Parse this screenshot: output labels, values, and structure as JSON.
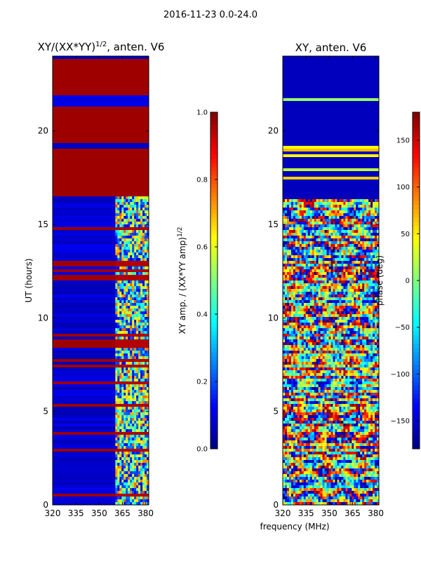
{
  "suptitle": "2016-11-23 0.0-24.0",
  "chart_data": [
    {
      "type": "heatmap",
      "title_main": "XY/(XX*YY)",
      "title_exp": "1/2",
      "title_tail": ", anten. V6",
      "xlabel": "",
      "ylabel": "UT (hours)",
      "xlim": [
        320,
        382
      ],
      "ylim": [
        0,
        24
      ],
      "xticks": [
        "320",
        "335",
        "350",
        "365",
        "380"
      ],
      "xtick_values": [
        320,
        335,
        350,
        365,
        380
      ],
      "yticks": [
        "0",
        "5",
        "10",
        "15",
        "20"
      ],
      "ytick_values": [
        0,
        5,
        10,
        15,
        20
      ],
      "colorbar": {
        "label": "XY amp. / (XX*YY amp)",
        "label_exp": "1/2",
        "range": [
          0.0,
          1.0
        ],
        "ticks": [
          "0.0",
          "0.2",
          "0.4",
          "0.6",
          "0.8",
          "1.0"
        ],
        "tick_values": [
          0.0,
          0.2,
          0.4,
          0.6,
          0.8,
          1.0
        ]
      },
      "colormap": "jet",
      "description_bands": {
        "high_value_hours": [
          [
            16.5,
            19.0
          ],
          [
            19.3,
            21.3
          ],
          [
            21.9,
            23.9
          ],
          [
            12.7,
            13.1
          ],
          [
            7.6,
            7.8
          ],
          [
            3.8,
            3.9
          ],
          [
            5.3,
            5.4
          ]
        ],
        "rfi_columns_mhz": [
          [
            360,
            382
          ]
        ]
      }
    },
    {
      "type": "heatmap",
      "title": "XY, anten. V6",
      "xlabel": "frequency (MHz)",
      "ylabel": "",
      "xlim": [
        320,
        382
      ],
      "ylim": [
        0,
        24
      ],
      "xticks": [
        "320",
        "335",
        "350",
        "365",
        "380"
      ],
      "xtick_values": [
        320,
        335,
        350,
        365,
        380
      ],
      "yticks": [
        "0",
        "5",
        "10",
        "15",
        "20"
      ],
      "ytick_values": [
        0,
        5,
        10,
        15,
        20
      ],
      "colorbar": {
        "label": "phase (deg)",
        "range": [
          -180,
          180
        ],
        "ticks": [
          "−150",
          "−100",
          "−50",
          "0",
          "50",
          "100",
          "150"
        ],
        "tick_values": [
          -150,
          -100,
          -50,
          0,
          50,
          100,
          150
        ]
      },
      "colormap": "jet"
    }
  ]
}
